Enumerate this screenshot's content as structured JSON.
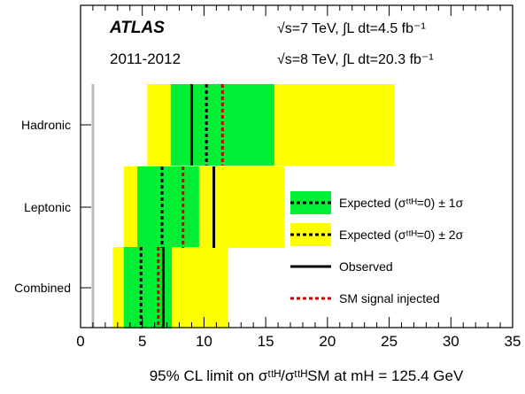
{
  "chart_data": {
    "type": "bar",
    "experiment": "ATLAS",
    "period": "2011-2012",
    "lumi_7": "√s=7 TeV, ∫L dt=4.5 fb⁻¹",
    "lumi_8": "√s=8 TeV, ∫L dt=20.3 fb⁻¹",
    "xlabel": "95% CL limit on σᵗᵗᴴ/σᵗᵗᴴSM at mH = 125.4 GeV",
    "xlim": [
      0,
      35
    ],
    "xticks": [
      "0",
      "5",
      "10",
      "15",
      "20",
      "25",
      "30",
      "35"
    ],
    "categories": [
      "Hadronic",
      "Leptonic",
      "Combined"
    ],
    "rows": [
      {
        "name": "Hadronic",
        "expected": 10.2,
        "sigma1": [
          7.3,
          15.7
        ],
        "sigma2": [
          5.4,
          25.4
        ],
        "observed": 9.0,
        "sm_injected": 11.5
      },
      {
        "name": "Leptonic",
        "expected": 6.6,
        "sigma1": [
          4.6,
          9.6
        ],
        "sigma2": [
          3.5,
          16.5
        ],
        "observed": 10.8,
        "sm_injected": 8.3
      },
      {
        "name": "Combined",
        "expected": 4.9,
        "sigma1": [
          3.5,
          7.4
        ],
        "sigma2": [
          2.6,
          11.9
        ],
        "observed": 6.7,
        "sm_injected": 6.3
      }
    ],
    "reference_line": 1,
    "legend": {
      "placement": "lower-right",
      "items": [
        {
          "label": "Expected (σᵗᵗᴴ=0) ± 1σ",
          "kind": "band1"
        },
        {
          "label": "Expected (σᵗᵗᴴ=0) ± 2σ",
          "kind": "band2"
        },
        {
          "label": "Observed",
          "kind": "observed"
        },
        {
          "label": "SM signal injected",
          "kind": "injected"
        }
      ]
    },
    "colors": {
      "band1": "#00ee33",
      "band2": "#ffff00",
      "observed": "#000000",
      "injected": "#cc0000",
      "expected": "#000000",
      "reference": "#bbbbbb"
    }
  }
}
